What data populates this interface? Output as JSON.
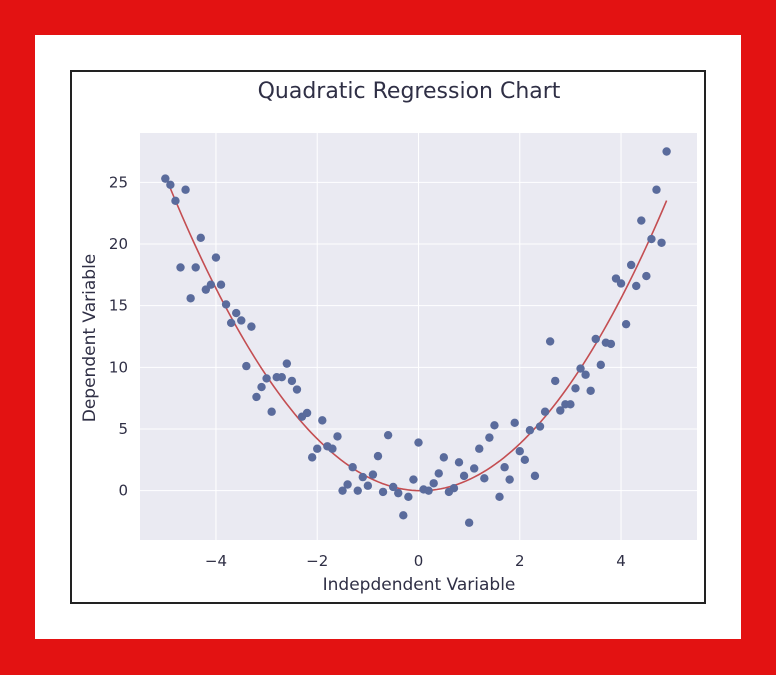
{
  "chart_data": {
    "type": "scatter",
    "title": "Quadratic Regression Chart",
    "xlabel": "Indepdendent Variable",
    "ylabel": "Dependent Variable",
    "xlim": [
      -5.5,
      5.5
    ],
    "ylim": [
      -4,
      29
    ],
    "xticks": [
      -4,
      -2,
      0,
      2,
      4
    ],
    "yticks": [
      0,
      5,
      10,
      15,
      20,
      25
    ],
    "xtick_labels": [
      "−4",
      "−2",
      "0",
      "2",
      "4"
    ],
    "ytick_labels": [
      "0",
      "5",
      "10",
      "15",
      "20",
      "25"
    ],
    "grid": true,
    "colors": {
      "frame": "#e31212",
      "plot_background": "#eaeaf2",
      "grid": "#ffffff",
      "points": "#5a6b9c",
      "fit_line": "#c44e52"
    },
    "fit": {
      "type": "quadratic",
      "a": 1.0,
      "b": -0.1,
      "c": 0.0,
      "x_range": [
        -5.0,
        4.9
      ]
    },
    "points": [
      [
        -5.0,
        25.3
      ],
      [
        -4.9,
        24.8
      ],
      [
        -4.8,
        23.5
      ],
      [
        -4.7,
        18.1
      ],
      [
        -4.6,
        24.4
      ],
      [
        -4.5,
        15.6
      ],
      [
        -4.4,
        18.1
      ],
      [
        -4.3,
        20.5
      ],
      [
        -4.2,
        16.3
      ],
      [
        -4.1,
        16.7
      ],
      [
        -4.0,
        18.9
      ],
      [
        -3.9,
        16.7
      ],
      [
        -3.8,
        15.1
      ],
      [
        -3.7,
        13.6
      ],
      [
        -3.6,
        14.4
      ],
      [
        -3.5,
        13.8
      ],
      [
        -3.4,
        10.1
      ],
      [
        -3.3,
        13.3
      ],
      [
        -3.2,
        7.6
      ],
      [
        -3.1,
        8.4
      ],
      [
        -3.0,
        9.1
      ],
      [
        -2.9,
        6.4
      ],
      [
        -2.8,
        9.2
      ],
      [
        -2.7,
        9.2
      ],
      [
        -2.6,
        10.3
      ],
      [
        -2.5,
        8.9
      ],
      [
        -2.4,
        8.2
      ],
      [
        -2.3,
        6.0
      ],
      [
        -2.2,
        6.3
      ],
      [
        -2.1,
        2.7
      ],
      [
        -2.0,
        3.4
      ],
      [
        -1.9,
        5.7
      ],
      [
        -1.8,
        3.6
      ],
      [
        -1.7,
        3.4
      ],
      [
        -1.6,
        4.4
      ],
      [
        -1.5,
        0.0
      ],
      [
        -1.4,
        0.5
      ],
      [
        -1.3,
        1.9
      ],
      [
        -1.2,
        0.0
      ],
      [
        -1.1,
        1.1
      ],
      [
        -1.0,
        0.4
      ],
      [
        -0.9,
        1.3
      ],
      [
        -0.8,
        2.8
      ],
      [
        -0.7,
        -0.1
      ],
      [
        -0.6,
        4.5
      ],
      [
        -0.5,
        0.3
      ],
      [
        -0.4,
        -0.2
      ],
      [
        -0.3,
        -2.0
      ],
      [
        -0.2,
        -0.5
      ],
      [
        -0.1,
        0.9
      ],
      [
        0.0,
        3.9
      ],
      [
        0.1,
        0.1
      ],
      [
        0.2,
        0.0
      ],
      [
        0.3,
        0.6
      ],
      [
        0.4,
        1.4
      ],
      [
        0.5,
        2.7
      ],
      [
        0.6,
        -0.1
      ],
      [
        0.7,
        0.2
      ],
      [
        0.8,
        2.3
      ],
      [
        0.9,
        1.2
      ],
      [
        1.0,
        -2.6
      ],
      [
        1.1,
        1.8
      ],
      [
        1.2,
        3.4
      ],
      [
        1.3,
        1.0
      ],
      [
        1.4,
        4.3
      ],
      [
        1.5,
        5.3
      ],
      [
        1.6,
        -0.5
      ],
      [
        1.7,
        1.9
      ],
      [
        1.8,
        0.9
      ],
      [
        1.9,
        5.5
      ],
      [
        2.0,
        3.2
      ],
      [
        2.1,
        2.5
      ],
      [
        2.2,
        4.9
      ],
      [
        2.3,
        1.2
      ],
      [
        2.4,
        5.2
      ],
      [
        2.5,
        6.4
      ],
      [
        2.6,
        12.1
      ],
      [
        2.7,
        8.9
      ],
      [
        2.8,
        6.5
      ],
      [
        2.9,
        7.0
      ],
      [
        3.0,
        7.0
      ],
      [
        3.1,
        8.3
      ],
      [
        3.2,
        9.9
      ],
      [
        3.3,
        9.4
      ],
      [
        3.4,
        8.1
      ],
      [
        3.5,
        12.3
      ],
      [
        3.6,
        10.2
      ],
      [
        3.7,
        12.0
      ],
      [
        3.8,
        11.9
      ],
      [
        3.9,
        17.2
      ],
      [
        4.0,
        16.8
      ],
      [
        4.1,
        13.5
      ],
      [
        4.2,
        18.3
      ],
      [
        4.3,
        16.6
      ],
      [
        4.4,
        21.9
      ],
      [
        4.5,
        17.4
      ],
      [
        4.6,
        20.4
      ],
      [
        4.7,
        24.4
      ],
      [
        4.8,
        20.1
      ],
      [
        4.9,
        27.5
      ]
    ]
  }
}
